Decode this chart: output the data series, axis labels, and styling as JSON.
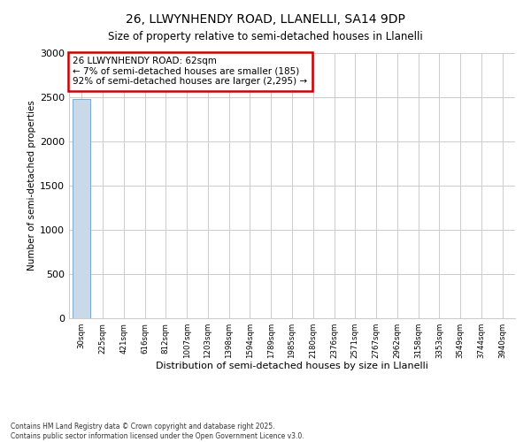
{
  "title": "26, LLWYNHENDY ROAD, LLANELLI, SA14 9DP",
  "subtitle": "Size of property relative to semi-detached houses in Llanelli",
  "xlabel": "Distribution of semi-detached houses by size in Llanelli",
  "ylabel": "Number of semi-detached properties",
  "bins": [
    "30sqm",
    "225sqm",
    "421sqm",
    "616sqm",
    "812sqm",
    "1007sqm",
    "1203sqm",
    "1398sqm",
    "1594sqm",
    "1789sqm",
    "1985sqm",
    "2180sqm",
    "2376sqm",
    "2571sqm",
    "2767sqm",
    "2962sqm",
    "3158sqm",
    "3353sqm",
    "3549sqm",
    "3744sqm",
    "3940sqm"
  ],
  "values": [
    2480,
    0,
    0,
    0,
    0,
    0,
    0,
    0,
    0,
    0,
    0,
    0,
    0,
    0,
    0,
    0,
    0,
    0,
    0,
    0,
    0
  ],
  "ylim": [
    0,
    3000
  ],
  "yticks": [
    0,
    500,
    1000,
    1500,
    2000,
    2500,
    3000
  ],
  "bar_color": "#c9d9ea",
  "bar_edge_color": "#7aaac8",
  "annotation_box_color": "#cc0000",
  "annotation_text": "26 LLWYNHENDY ROAD: 62sqm\n← 7% of semi-detached houses are smaller (185)\n92% of semi-detached houses are larger (2,295) →",
  "footnote": "Contains HM Land Registry data © Crown copyright and database right 2025.\nContains public sector information licensed under the Open Government Licence v3.0.",
  "background_color": "#ffffff",
  "grid_color": "#cccccc"
}
